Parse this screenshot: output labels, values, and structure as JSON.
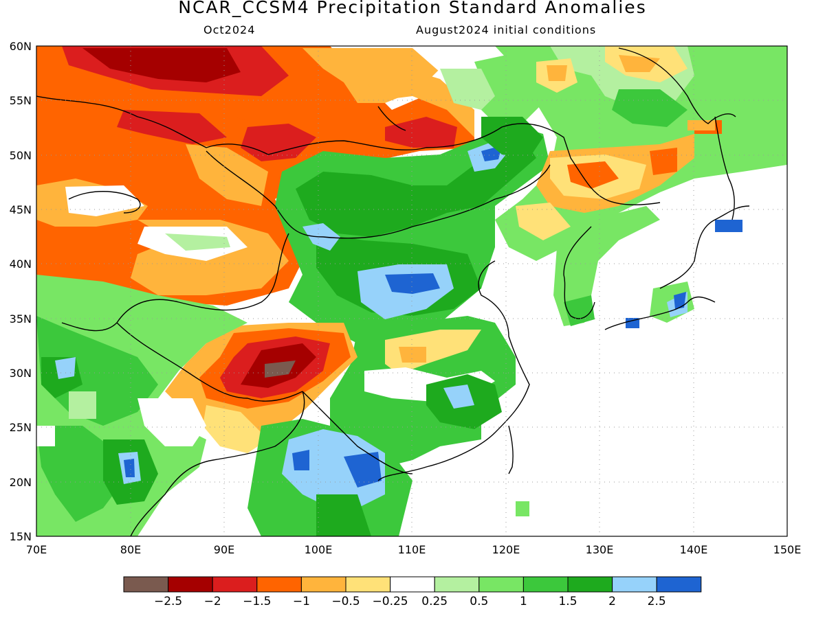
{
  "header": {
    "title": "NCAR_CCSM4 Precipitation Standard Anomalies",
    "month": "Oct2024",
    "init": "August2024 initial conditions"
  },
  "map": {
    "lon_range": [
      70,
      150
    ],
    "lat_range": [
      15,
      60
    ],
    "lat_labels": [
      "60N",
      "55N",
      "50N",
      "45N",
      "40N",
      "35N",
      "30N",
      "25N",
      "20N",
      "15N"
    ],
    "lon_labels": [
      "70E",
      "80E",
      "90E",
      "100E",
      "110E",
      "120E",
      "130E",
      "140E",
      "150E"
    ],
    "grid": "dotted"
  },
  "colorbar": {
    "colors": [
      "#7a5a4f",
      "#a50000",
      "#db1e1e",
      "#ff6400",
      "#ffb43c",
      "#ffe178",
      "#ffffff",
      "#b4f0a0",
      "#78e664",
      "#3cc83c",
      "#1eaa1e",
      "#96d2fa",
      "#1e64d2"
    ],
    "tick_labels": [
      "-2.5",
      "-2",
      "-1.5",
      "-1",
      "-0.5",
      "-0.25",
      "0.25",
      "0.5",
      "1",
      "1.5",
      "2",
      "2.5"
    ]
  }
}
